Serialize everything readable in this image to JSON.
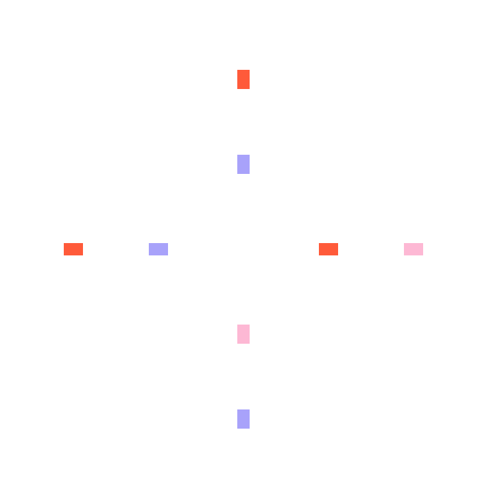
{
  "palette": {
    "red": "#ff5a3a",
    "lavender": "#a8a2fa",
    "pink": "#fdb8d4"
  },
  "tiles": [
    {
      "id": "north-outer",
      "color": "red",
      "orientation": "vertical",
      "arm": "north",
      "ring": 2
    },
    {
      "id": "north-inner",
      "color": "lavender",
      "orientation": "vertical",
      "arm": "north",
      "ring": 1
    },
    {
      "id": "west-outer",
      "color": "red",
      "orientation": "horizontal",
      "arm": "west",
      "ring": 2
    },
    {
      "id": "west-inner",
      "color": "lavender",
      "orientation": "horizontal",
      "arm": "west",
      "ring": 1
    },
    {
      "id": "east-inner",
      "color": "red",
      "orientation": "horizontal",
      "arm": "east",
      "ring": 1
    },
    {
      "id": "east-outer",
      "color": "pink",
      "orientation": "horizontal",
      "arm": "east",
      "ring": 2
    },
    {
      "id": "south-inner",
      "color": "pink",
      "orientation": "vertical",
      "arm": "south",
      "ring": 1
    },
    {
      "id": "south-outer",
      "color": "lavender",
      "orientation": "vertical",
      "arm": "south",
      "ring": 2
    }
  ]
}
